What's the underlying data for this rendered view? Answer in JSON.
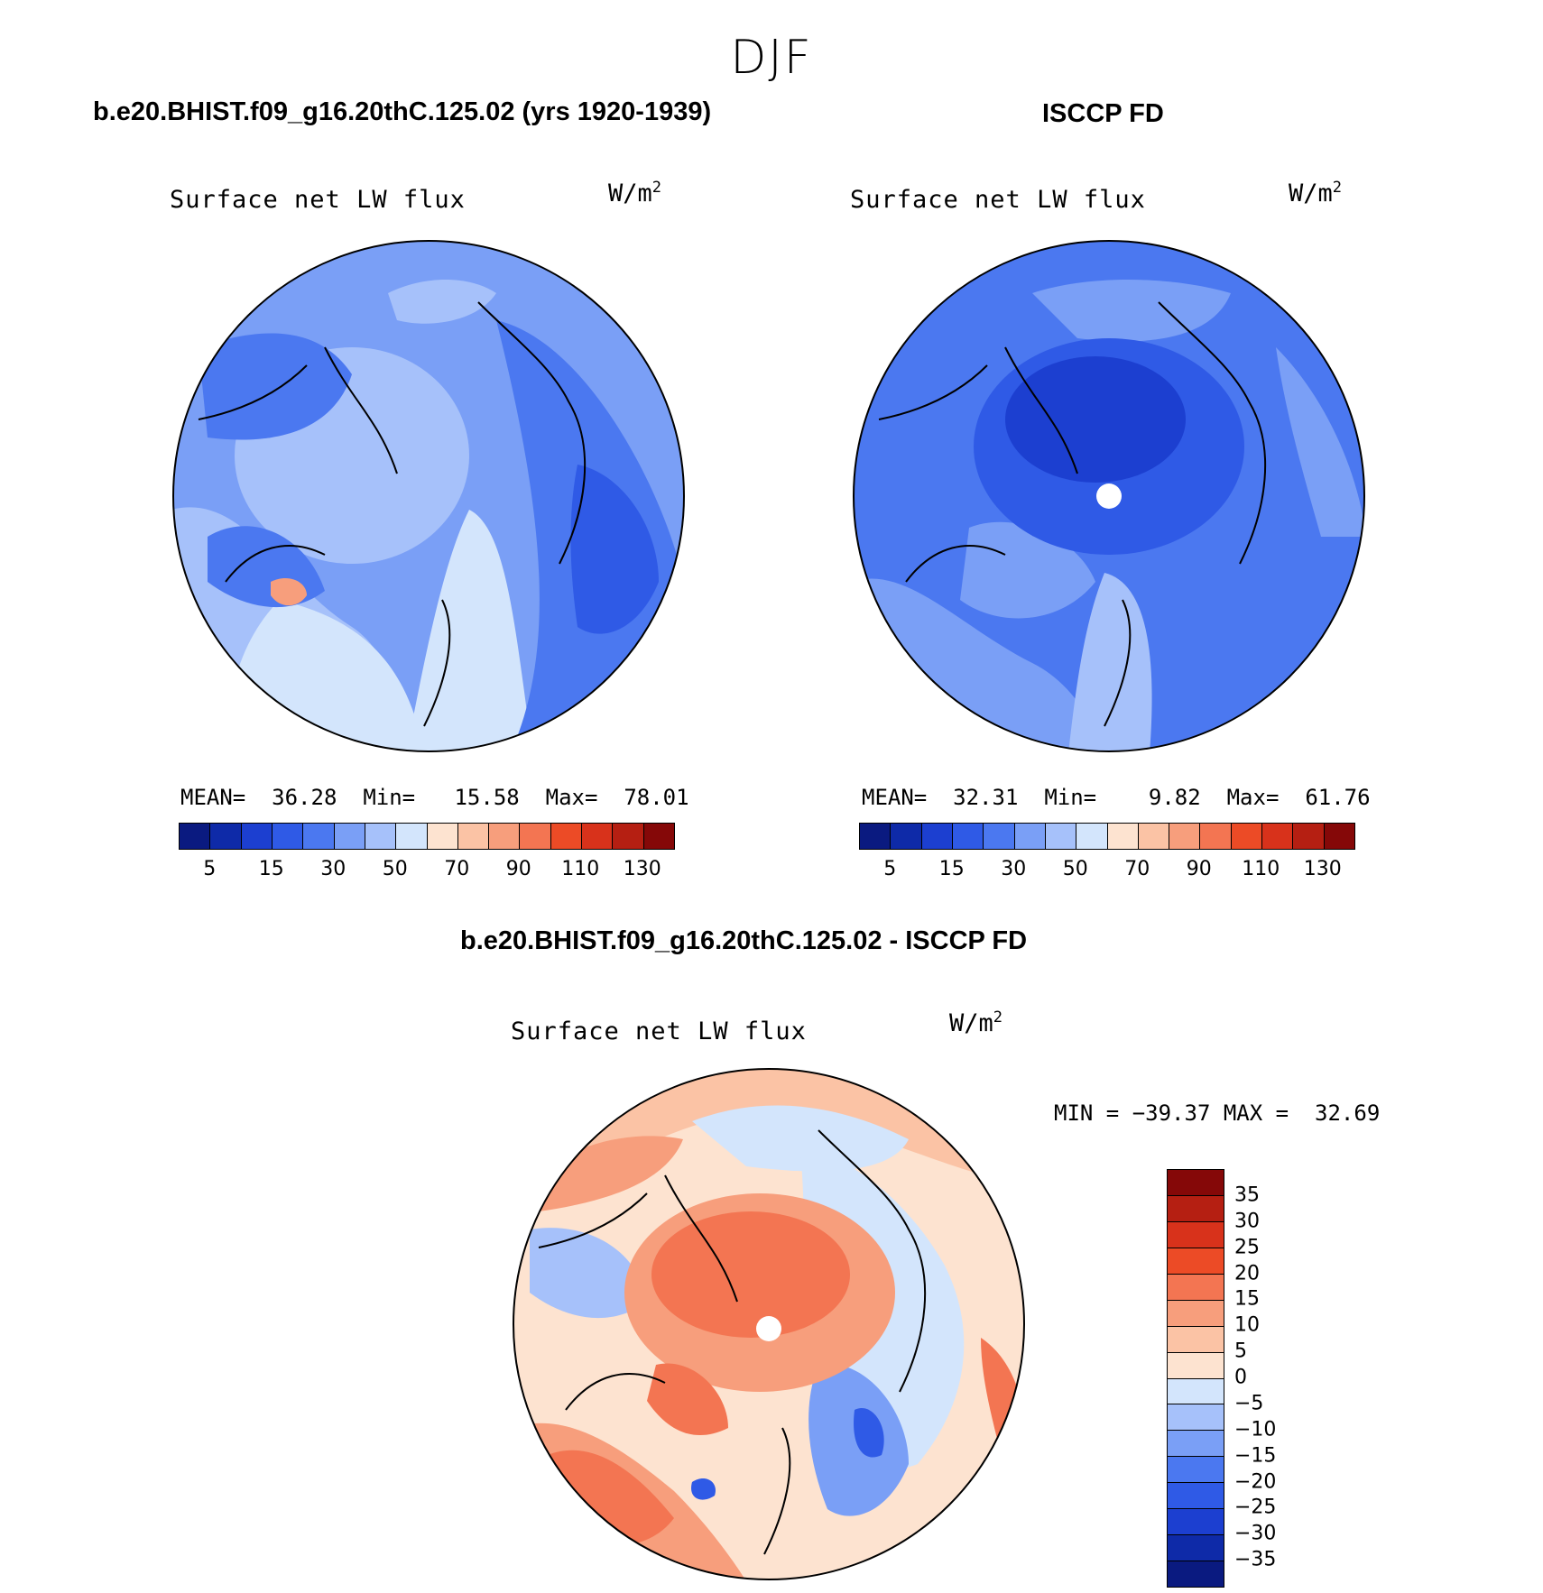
{
  "page": {
    "season": "DJF",
    "panel_a_title": "b.e20.BHIST.f09_g16.20thC.125.02 (yrs 1920-1939)",
    "panel_b_title": "ISCCP FD",
    "panel_c_title": "b.e20.BHIST.f09_g16.20thC.125.02 - ISCCP FD"
  },
  "panels": {
    "a": {
      "variable": "Surface net LW flux",
      "units": "W/m",
      "units_sup": "2",
      "mean_label": "MEAN=",
      "mean": "36.28",
      "min_label": "Min=",
      "min": "15.58",
      "max_label": "Max=",
      "max": "78.01"
    },
    "b": {
      "variable": "Surface net LW flux",
      "units": "W/m",
      "units_sup": "2",
      "mean_label": "MEAN=",
      "mean": "32.31",
      "min_label": "Min=",
      "min": "9.82",
      "max_label": "Max=",
      "max": "61.76"
    },
    "c": {
      "variable": "Surface net LW flux",
      "units": "W/m",
      "units_sup": "2",
      "min_label": "MIN =",
      "min": "−39.37",
      "max_label": "MAX =",
      "max": "32.69"
    }
  },
  "colorbar_abs": {
    "colors": [
      "#0a1a80",
      "#0e2aa8",
      "#1c3fd0",
      "#2f5ae6",
      "#4b78f0",
      "#7a9ff6",
      "#a6c1fa",
      "#d3e5fc",
      "#fde3d0",
      "#fbc3a5",
      "#f79e7c",
      "#f37552",
      "#ec4b26",
      "#d8321b",
      "#b51f12",
      "#850808"
    ],
    "tick_labels": [
      "5",
      "15",
      "30",
      "50",
      "70",
      "90",
      "110",
      "130"
    ]
  },
  "colorbar_diff": {
    "colors": [
      "#850808",
      "#b51f12",
      "#d8321b",
      "#ec4b26",
      "#f37552",
      "#f79e7c",
      "#fbc3a5",
      "#fde3d0",
      "#d3e5fc",
      "#a6c1fa",
      "#7a9ff6",
      "#4b78f0",
      "#2f5ae6",
      "#1c3fd0",
      "#0e2aa8",
      "#0a1a80"
    ],
    "tick_labels": [
      "35",
      "30",
      "25",
      "20",
      "15",
      "10",
      "5",
      "0",
      "−5",
      "−10",
      "−15",
      "−20",
      "−25",
      "−30",
      "−35"
    ]
  }
}
